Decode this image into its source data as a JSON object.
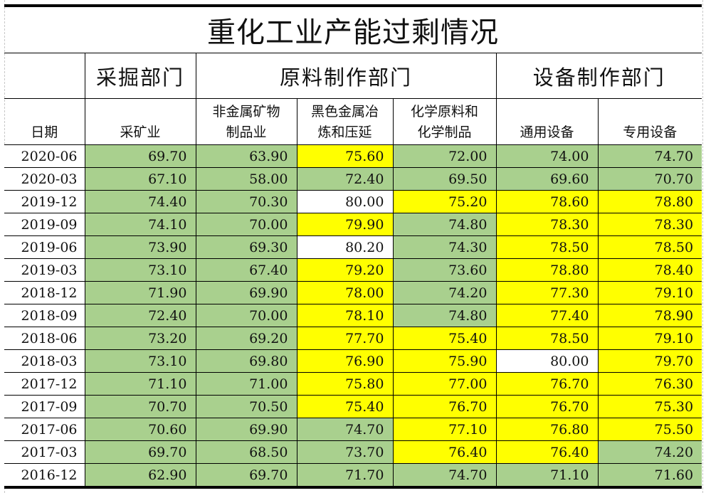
{
  "title": "重化工业产能过剩情况",
  "groups": {
    "blank": "",
    "mining": "采掘部门",
    "raw_materials": "原料制作部门",
    "equipment": "设备制作部门"
  },
  "headers": {
    "date": "日期",
    "c1": "采矿业",
    "c2": "非金属矿物\n制品业",
    "c2_line1": "非金属矿物",
    "c2_line2": "制品业",
    "c3_line1": "黑色金属冶",
    "c3_line2": "炼和压延",
    "c4_line1": "化学原料和",
    "c4_line2": "化学制品",
    "c5": "通用设备",
    "c6": "专用设备"
  },
  "colors": {
    "green": "#a9d08e",
    "yellow": "#ffff00",
    "white": "#ffffff"
  },
  "rows": [
    {
      "date": "2020-06",
      "v": [
        "69.70",
        "63.90",
        "75.60",
        "72.00",
        "74.00",
        "74.70"
      ],
      "c": [
        "green",
        "green",
        "yellow",
        "green",
        "green",
        "green"
      ]
    },
    {
      "date": "2020-03",
      "v": [
        "67.10",
        "58.00",
        "72.40",
        "69.50",
        "69.60",
        "70.70"
      ],
      "c": [
        "green",
        "green",
        "green",
        "green",
        "green",
        "green"
      ]
    },
    {
      "date": "2019-12",
      "v": [
        "74.40",
        "70.30",
        "80.00",
        "75.20",
        "78.60",
        "78.80"
      ],
      "c": [
        "green",
        "green",
        "white",
        "yellow",
        "yellow",
        "yellow"
      ]
    },
    {
      "date": "2019-09",
      "v": [
        "74.10",
        "70.00",
        "79.90",
        "74.80",
        "78.30",
        "78.30"
      ],
      "c": [
        "green",
        "green",
        "yellow",
        "green",
        "yellow",
        "yellow"
      ]
    },
    {
      "date": "2019-06",
      "v": [
        "73.90",
        "69.30",
        "80.20",
        "74.30",
        "78.50",
        "78.50"
      ],
      "c": [
        "green",
        "green",
        "white",
        "green",
        "yellow",
        "yellow"
      ]
    },
    {
      "date": "2019-03",
      "v": [
        "73.10",
        "67.40",
        "79.20",
        "73.60",
        "78.80",
        "78.40"
      ],
      "c": [
        "green",
        "green",
        "yellow",
        "green",
        "yellow",
        "yellow"
      ]
    },
    {
      "date": "2018-12",
      "v": [
        "71.90",
        "69.90",
        "78.00",
        "74.20",
        "77.30",
        "79.10"
      ],
      "c": [
        "green",
        "green",
        "yellow",
        "green",
        "yellow",
        "yellow"
      ]
    },
    {
      "date": "2018-09",
      "v": [
        "72.40",
        "70.00",
        "78.10",
        "74.80",
        "77.40",
        "78.90"
      ],
      "c": [
        "green",
        "green",
        "yellow",
        "green",
        "yellow",
        "yellow"
      ]
    },
    {
      "date": "2018-06",
      "v": [
        "73.20",
        "69.20",
        "77.70",
        "75.40",
        "78.50",
        "79.10"
      ],
      "c": [
        "green",
        "green",
        "yellow",
        "yellow",
        "yellow",
        "yellow"
      ]
    },
    {
      "date": "2018-03",
      "v": [
        "73.10",
        "69.80",
        "76.90",
        "75.90",
        "80.00",
        "79.70"
      ],
      "c": [
        "green",
        "green",
        "yellow",
        "yellow",
        "white",
        "yellow"
      ]
    },
    {
      "date": "2017-12",
      "v": [
        "71.10",
        "71.00",
        "75.80",
        "77.00",
        "76.70",
        "76.30"
      ],
      "c": [
        "green",
        "green",
        "yellow",
        "yellow",
        "yellow",
        "yellow"
      ]
    },
    {
      "date": "2017-09",
      "v": [
        "70.70",
        "70.50",
        "75.40",
        "76.70",
        "76.70",
        "75.30"
      ],
      "c": [
        "green",
        "green",
        "yellow",
        "yellow",
        "yellow",
        "yellow"
      ]
    },
    {
      "date": "2017-06",
      "v": [
        "70.60",
        "69.90",
        "74.70",
        "77.10",
        "76.80",
        "75.50"
      ],
      "c": [
        "green",
        "green",
        "green",
        "yellow",
        "yellow",
        "yellow"
      ]
    },
    {
      "date": "2017-03",
      "v": [
        "69.70",
        "68.50",
        "73.70",
        "76.40",
        "76.40",
        "74.20"
      ],
      "c": [
        "green",
        "green",
        "green",
        "yellow",
        "yellow",
        "green"
      ]
    },
    {
      "date": "2016-12",
      "v": [
        "62.90",
        "69.70",
        "71.70",
        "74.70",
        "71.10",
        "71.60"
      ],
      "c": [
        "green",
        "green",
        "green",
        "green",
        "green",
        "green"
      ]
    }
  ]
}
